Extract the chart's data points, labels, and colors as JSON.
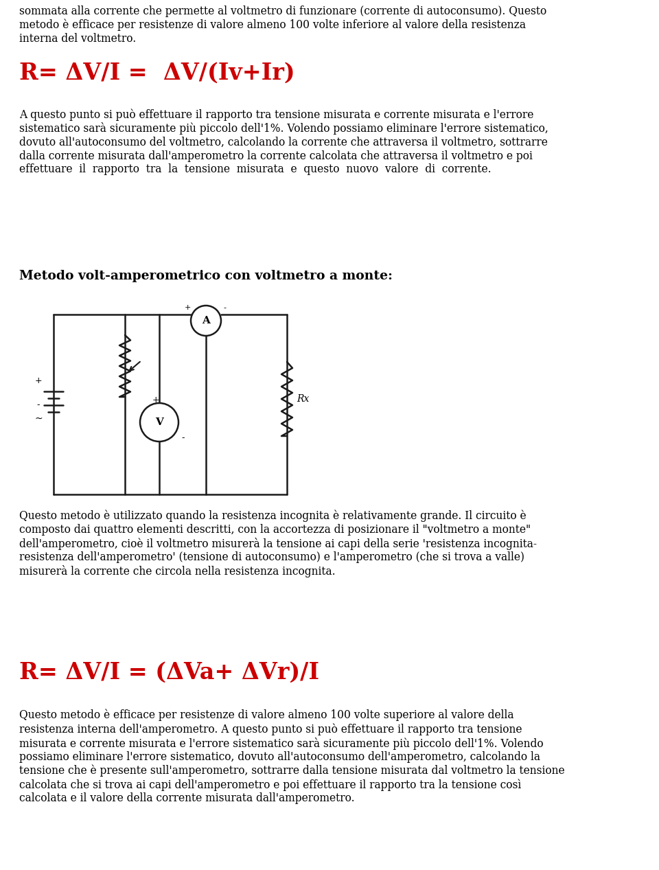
{
  "bg_color": "#ffffff",
  "text_color": "#000000",
  "red_color": "#cc0000",
  "wire_color": "#1a1a1a",
  "para0": "sommata alla corrente che permette al voltmetro di funzionare (corrente di autoconsumo). Questo\nmetodo è efficace per resistenze di valore almeno 100 volte inferiore al valore della resistenza\ninterna del voltmetro.",
  "formula1": "R= ΔV/I =  ΔV/(Iv+Ir)",
  "para1": "A questo punto si può effettuare il rapporto tra tensione misurata e corrente misurata e l'errore\nsistematico sarà sicuramente più piccolo dell'1%. Volendo possiamo eliminare l'errore sistematico,\ndovuto all'autoconsumo del voltmetro, calcolando la corrente che attraversa il voltmetro, sottrarre\ndalla corrente misurata dall'amperometro la corrente calcolata che attraversa il voltmetro e poi\neffettuare  il  rapporto  tra  la  tensione  misurata  e  questo  nuovo  valore  di  corrente.",
  "heading2": "Metodo volt-amperometrico con voltmetro a monte",
  "para2": "Questo metodo è utilizzato quando la resistenza incognita è relativamente grande. Il circuito è\ncomposto dai quattro elementi descritti, con la accortezza di posizionare il \"voltmetro a monte\"\ndell'amperometro, cioè il voltmetro misurerà la tensione ai capi della serie 'resistenza incognita-\nresistenza dell'amperometro' (tensione di autoconsumo) e l'amperometro (che si trova a valle)\nmisurerà la corrente che circola nella resistenza incognita.",
  "formula2": "R= ΔV/I = (ΔVa+ ΔVr)/I",
  "para3": "Questo metodo è efficace per resistenze di valore almeno 100 volte superiore al valore della\nresistenza interna dell'amperometro. A questo punto si può effettuare il rapporto tra tensione\nmisurata e corrente misurata e l'errore sistematico sarà sicuramente più piccolo dell'1%. Volendo\npossiamo eliminare l'errore sistematico, dovuto all'autoconsumo dell'amperometro, calcolando la\ntensione che è presente sull'amperometro, sottrarre dalla tensione misurata dal voltmetro la tensione\ncalcolata che si trova ai capi dell'amperometro e poi effettuare il rapporto tra la tensione così\ncalcolata e il valore della corrente misurata dall'amperometro."
}
